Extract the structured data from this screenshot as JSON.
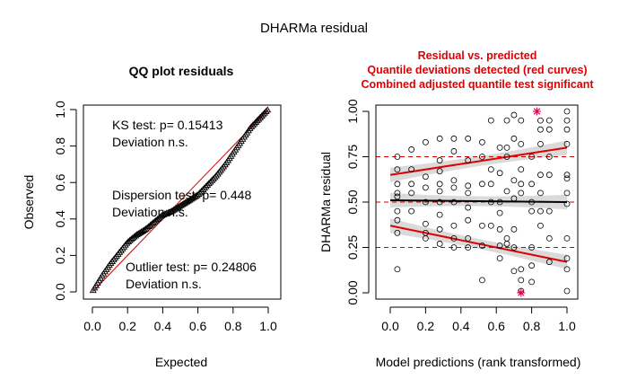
{
  "figure_title": "DHARMa residual",
  "colors": {
    "points": "#000000",
    "red": "#e00000",
    "ref_line": "#d00000",
    "band": "#d3d3d3",
    "outlier": "#e0004d"
  },
  "chart_data": [
    {
      "type": "scatter",
      "title": "QQ plot residuals",
      "xlabel": "Expected",
      "ylabel": "Observed",
      "xlim": [
        0,
        1
      ],
      "ylim": [
        0,
        1
      ],
      "xticks": [
        "0.0",
        "0.2",
        "0.4",
        "0.6",
        "0.8",
        "1.0"
      ],
      "yticks": [
        "0.0",
        "0.2",
        "0.4",
        "0.6",
        "0.8",
        "1.0"
      ],
      "reference_line": {
        "from": [
          0,
          0
        ],
        "to": [
          1,
          1
        ],
        "color": "#d00000"
      },
      "qq_curve": {
        "x": [
          0.0,
          0.05,
          0.1,
          0.15,
          0.2,
          0.25,
          0.3,
          0.35,
          0.4,
          0.45,
          0.5,
          0.55,
          0.6,
          0.65,
          0.7,
          0.75,
          0.8,
          0.85,
          0.9,
          0.95,
          1.0
        ],
        "y": [
          0.0,
          0.08,
          0.15,
          0.21,
          0.27,
          0.31,
          0.34,
          0.38,
          0.42,
          0.44,
          0.47,
          0.5,
          0.53,
          0.58,
          0.63,
          0.69,
          0.76,
          0.83,
          0.9,
          0.95,
          1.0
        ]
      },
      "n_points": 120,
      "marker": "open-triangle",
      "annotations": [
        {
          "line1": "KS test: p= 0.15413",
          "line2": "Deviation n.s."
        },
        {
          "line1": "Dispersion test: p= 0.448",
          "line2": "Deviation n.s."
        },
        {
          "line1": "Outlier test: p= 0.24806",
          "line2": "Deviation n.s."
        }
      ]
    },
    {
      "type": "scatter",
      "title_lines": [
        "Residual vs. predicted",
        "Quantile deviations detected (red curves)",
        "Combined adjusted quantile test significant"
      ],
      "title_color": "#e00000",
      "xlabel": "Model predictions (rank transformed)",
      "ylabel": "DHARMa residual",
      "xlim": [
        0,
        1
      ],
      "ylim": [
        0,
        1
      ],
      "xticks": [
        "0.0",
        "0.2",
        "0.4",
        "0.6",
        "0.8",
        "1.0"
      ],
      "yticks": [
        "0.00",
        "0.25",
        "0.50",
        "0.75",
        "1.00"
      ],
      "hlines": [
        0.25,
        0.5,
        0.75
      ],
      "quantile_fits": [
        {
          "quantile": 0.75,
          "from": [
            0,
            0.65
          ],
          "to": [
            1,
            0.8
          ],
          "color": "#e00000",
          "band": 0.04
        },
        {
          "quantile": 0.5,
          "from": [
            0,
            0.51
          ],
          "to": [
            1,
            0.5
          ],
          "color": "#000000",
          "band": 0.04
        },
        {
          "quantile": 0.25,
          "from": [
            0,
            0.37
          ],
          "to": [
            1,
            0.17
          ],
          "color": "#e00000",
          "band": 0.04
        }
      ],
      "points": [
        [
          0.04,
          0.13
        ],
        [
          0.04,
          0.33
        ],
        [
          0.04,
          0.4
        ],
        [
          0.04,
          0.45
        ],
        [
          0.04,
          0.53
        ],
        [
          0.04,
          0.55
        ],
        [
          0.04,
          0.6
        ],
        [
          0.04,
          0.68
        ],
        [
          0.04,
          0.75
        ],
        [
          0.12,
          0.45
        ],
        [
          0.12,
          0.55
        ],
        [
          0.12,
          0.6
        ],
        [
          0.12,
          0.68
        ],
        [
          0.12,
          0.79
        ],
        [
          0.2,
          0.3
        ],
        [
          0.2,
          0.33
        ],
        [
          0.2,
          0.38
        ],
        [
          0.2,
          0.5
        ],
        [
          0.2,
          0.58
        ],
        [
          0.2,
          0.64
        ],
        [
          0.2,
          0.83
        ],
        [
          0.28,
          0.27
        ],
        [
          0.28,
          0.35
        ],
        [
          0.28,
          0.43
        ],
        [
          0.28,
          0.5
        ],
        [
          0.28,
          0.56
        ],
        [
          0.28,
          0.6
        ],
        [
          0.28,
          0.67
        ],
        [
          0.28,
          0.73
        ],
        [
          0.28,
          0.85
        ],
        [
          0.36,
          0.25
        ],
        [
          0.36,
          0.3
        ],
        [
          0.36,
          0.37
        ],
        [
          0.36,
          0.5
        ],
        [
          0.36,
          0.58
        ],
        [
          0.36,
          0.62
        ],
        [
          0.36,
          0.78
        ],
        [
          0.36,
          0.85
        ],
        [
          0.44,
          0.25
        ],
        [
          0.44,
          0.3
        ],
        [
          0.44,
          0.4
        ],
        [
          0.44,
          0.47
        ],
        [
          0.44,
          0.55
        ],
        [
          0.44,
          0.59
        ],
        [
          0.44,
          0.73
        ],
        [
          0.44,
          0.85
        ],
        [
          0.52,
          0.07
        ],
        [
          0.52,
          0.26
        ],
        [
          0.52,
          0.37
        ],
        [
          0.52,
          0.6
        ],
        [
          0.52,
          0.75
        ],
        [
          0.52,
          0.83
        ],
        [
          0.57,
          0.37
        ],
        [
          0.57,
          0.5
        ],
        [
          0.57,
          0.6
        ],
        [
          0.57,
          0.68
        ],
        [
          0.57,
          0.95
        ],
        [
          0.62,
          0.19
        ],
        [
          0.62,
          0.26
        ],
        [
          0.62,
          0.35
        ],
        [
          0.62,
          0.44
        ],
        [
          0.62,
          0.5
        ],
        [
          0.62,
          0.66
        ],
        [
          0.62,
          0.8
        ],
        [
          0.66,
          0.27
        ],
        [
          0.66,
          0.3
        ],
        [
          0.66,
          0.56
        ],
        [
          0.66,
          0.75
        ],
        [
          0.66,
          0.8
        ],
        [
          0.66,
          0.95
        ],
        [
          0.7,
          0.12
        ],
        [
          0.7,
          0.25
        ],
        [
          0.7,
          0.35
        ],
        [
          0.7,
          0.52
        ],
        [
          0.7,
          0.62
        ],
        [
          0.7,
          0.85
        ],
        [
          0.7,
          0.98
        ],
        [
          0.74,
          0.01
        ],
        [
          0.74,
          0.07
        ],
        [
          0.74,
          0.13
        ],
        [
          0.74,
          0.55
        ],
        [
          0.74,
          0.6
        ],
        [
          0.74,
          0.68
        ],
        [
          0.74,
          0.82
        ],
        [
          0.74,
          0.95
        ],
        [
          0.8,
          0.06
        ],
        [
          0.8,
          0.15
        ],
        [
          0.8,
          0.25
        ],
        [
          0.8,
          0.45
        ],
        [
          0.8,
          0.5
        ],
        [
          0.8,
          0.6
        ],
        [
          0.8,
          0.75
        ],
        [
          0.85,
          0.37
        ],
        [
          0.85,
          0.45
        ],
        [
          0.85,
          0.55
        ],
        [
          0.85,
          0.65
        ],
        [
          0.85,
          0.82
        ],
        [
          0.85,
          0.9
        ],
        [
          0.85,
          0.95
        ],
        [
          0.9,
          0.17
        ],
        [
          0.9,
          0.3
        ],
        [
          0.9,
          0.45
        ],
        [
          0.9,
          0.65
        ],
        [
          0.9,
          0.75
        ],
        [
          0.9,
          0.9
        ],
        [
          0.9,
          0.95
        ],
        [
          1.0,
          0.01
        ],
        [
          1.0,
          0.13
        ],
        [
          1.0,
          0.19
        ],
        [
          1.0,
          0.3
        ],
        [
          1.0,
          0.49
        ],
        [
          1.0,
          0.55
        ],
        [
          1.0,
          0.63
        ],
        [
          1.0,
          0.65
        ],
        [
          1.0,
          0.82
        ],
        [
          1.0,
          0.9
        ],
        [
          1.0,
          0.95
        ],
        [
          1.0,
          1.0
        ]
      ],
      "outliers": [
        [
          0.74,
          0.0
        ],
        [
          0.83,
          1.0
        ]
      ]
    }
  ]
}
